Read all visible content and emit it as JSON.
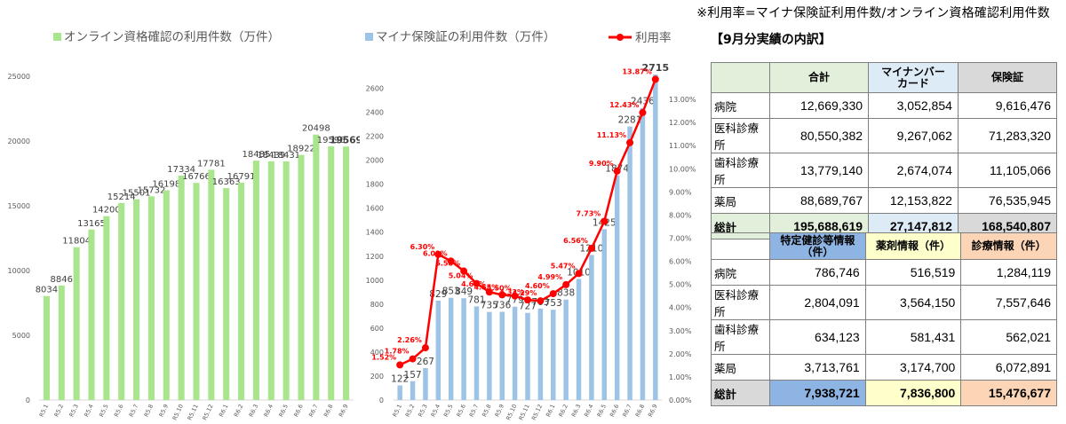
{
  "note": "※利用率=マイナ保険証利用件数/オンライン資格確認利用件数",
  "chart_data": [
    {
      "type": "bar",
      "legend": [
        "オンライン資格確認の利用件数（万件）"
      ],
      "categories": [
        "R5.1",
        "R5.2",
        "R5.3",
        "R5.4",
        "R5.5",
        "R5.6",
        "R5.7",
        "R5.8",
        "R5.9",
        "R5.10",
        "R5.11",
        "R5.12",
        "R6.1",
        "R6.2",
        "R6.3",
        "R6.4",
        "R6.5",
        "R6.6",
        "R6.7",
        "R6.8",
        "R6.9"
      ],
      "values": [
        8034,
        8846,
        11804,
        13165,
        14200,
        15214,
        15501,
        15732,
        16198,
        17334,
        16766,
        17781,
        16363,
        16791,
        18485,
        18439,
        18431,
        18922,
        20498,
        19596,
        19569
      ],
      "value_labels": [
        "8034",
        "8846",
        "11804",
        "13165",
        "14200",
        "15214",
        "15501",
        "15732",
        "16198",
        "17334",
        "16766",
        "17781",
        "16363",
        "16791",
        "18485",
        "18439",
        "18431",
        "18922",
        "20498",
        "19596",
        "19569"
      ],
      "ylim": [
        0,
        25000
      ],
      "yticks": [
        "0",
        "5000",
        "10000",
        "15000",
        "20000",
        "25000"
      ],
      "color": "#a9e58c"
    },
    {
      "type": "bar+line",
      "legend": [
        "マイナ保険証の利用件数（万件）",
        "利用率"
      ],
      "categories": [
        "R5.1",
        "R5.2",
        "R5.3",
        "R5.4",
        "R5.5",
        "R5.6",
        "R5.7",
        "R5.8",
        "R5.9",
        "R5.10",
        "R5.11",
        "R5.12",
        "R6.1",
        "R6.2",
        "R6.3",
        "R6.4",
        "R6.5",
        "R6.6",
        "R6.7",
        "R6.8",
        "R6.9"
      ],
      "bar_values": [
        122,
        157,
        267,
        829,
        853,
        849,
        781,
        735,
        736,
        779,
        727,
        763,
        753,
        838,
        1010,
        1210,
        1425,
        1874,
        2281,
        2436,
        2715
      ],
      "bar_labels": [
        "122",
        "157",
        "267",
        "829",
        "853",
        "849",
        "781",
        "735",
        "736",
        "779",
        "727",
        "763",
        "753",
        "838",
        "1010",
        "1210",
        "1425",
        "1874",
        "2281",
        "2436",
        "2715"
      ],
      "rate_values": [
        1.52,
        1.78,
        2.26,
        6.3,
        6.01,
        5.58,
        5.04,
        4.67,
        4.55,
        4.5,
        4.33,
        4.29,
        4.6,
        4.99,
        5.47,
        6.56,
        7.73,
        9.9,
        11.13,
        12.43,
        13.87
      ],
      "rate_labels": [
        "1.52%",
        "1.78%",
        "2.26%",
        "6.30%",
        "6.01%",
        "5.58%",
        "5.04%",
        "4.67%",
        "4.55%",
        "4.50%",
        "4.33%",
        "4.29%",
        "4.60%",
        "4.99%",
        "5.47%",
        "6.56%",
        "7.73%",
        "9.90%",
        "11.13%",
        "12.43%",
        "13.87%"
      ],
      "ylim_left": [
        0,
        2700
      ],
      "yticks_left": [
        "0",
        "200",
        "400",
        "600",
        "800",
        "1000",
        "1200",
        "1400",
        "1600",
        "1800",
        "2000",
        "2200",
        "2400",
        "2600"
      ],
      "ylim_right": [
        0,
        14
      ],
      "yticks_right": [
        "0.00%",
        "1.00%",
        "2.00%",
        "3.00%",
        "4.00%",
        "5.00%",
        "6.00%",
        "7.00%",
        "8.00%",
        "9.00%",
        "10.00%",
        "11.00%",
        "12.00%",
        "13.00%"
      ],
      "bar_color": "#9dc3e6",
      "line_color": "#ff0000"
    }
  ],
  "breakdown_title": "【9月分実績の内訳】",
  "table1": {
    "headers": [
      "合計",
      "マイナンバーカード",
      "保険証"
    ],
    "header_lines": [
      [
        "合計"
      ],
      [
        "マイナンバー",
        "カード"
      ],
      [
        "保険証"
      ]
    ],
    "rows": [
      {
        "label": "病院",
        "values": [
          "12,669,330",
          "3,052,854",
          "9,616,476"
        ]
      },
      {
        "label": "医科診療所",
        "values": [
          "80,550,382",
          "9,267,062",
          "71,283,320"
        ]
      },
      {
        "label": "歯科診療所",
        "values": [
          "13,779,140",
          "2,674,074",
          "11,105,066"
        ]
      },
      {
        "label": "薬局",
        "values": [
          "88,689,767",
          "12,153,822",
          "76,535,945"
        ]
      }
    ],
    "total": {
      "label": "総計",
      "values": [
        "195,688,619",
        "27,147,812",
        "168,540,807"
      ]
    }
  },
  "table2": {
    "headers": [
      "特定健診等情報（件）",
      "薬剤情報（件）",
      "診療情報（件）"
    ],
    "header_lines": [
      [
        "特定健診等情報",
        "（件）"
      ],
      [
        "薬剤情報（件）"
      ],
      [
        "診療情報（件）"
      ]
    ],
    "rows": [
      {
        "label": "病院",
        "values": [
          "786,746",
          "516,519",
          "1,284,119"
        ]
      },
      {
        "label": "医科診療所",
        "values": [
          "2,804,091",
          "3,564,150",
          "7,557,646"
        ]
      },
      {
        "label": "歯科診療所",
        "values": [
          "634,123",
          "581,431",
          "562,021"
        ]
      },
      {
        "label": "薬局",
        "values": [
          "3,713,761",
          "3,174,700",
          "6,072,891"
        ]
      }
    ],
    "total": {
      "label": "総計",
      "values": [
        "7,938,721",
        "7,836,800",
        "15,476,677"
      ]
    }
  }
}
